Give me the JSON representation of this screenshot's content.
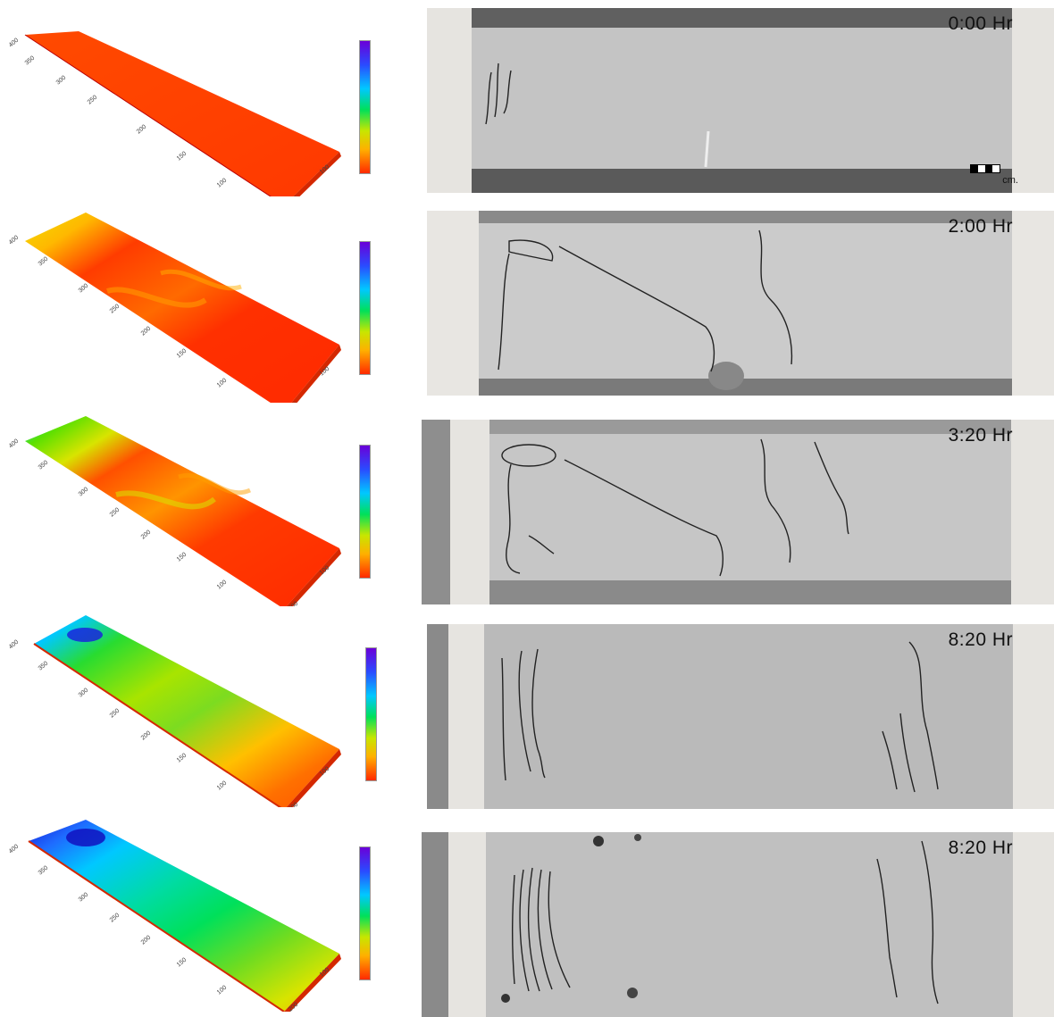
{
  "panels": [
    {
      "time": "0:00 Hr",
      "scale": "cm."
    },
    {
      "time": "2:00 Hr"
    },
    {
      "time": "3:20 Hr"
    },
    {
      "time": "8:20 Hr"
    },
    {
      "time": "8:20 Hr"
    }
  ],
  "colormap": [
    "#6a00d8",
    "#2a4bff",
    "#00c8ff",
    "#00e05a",
    "#c8e600",
    "#ffb000",
    "#ff2a00"
  ]
}
